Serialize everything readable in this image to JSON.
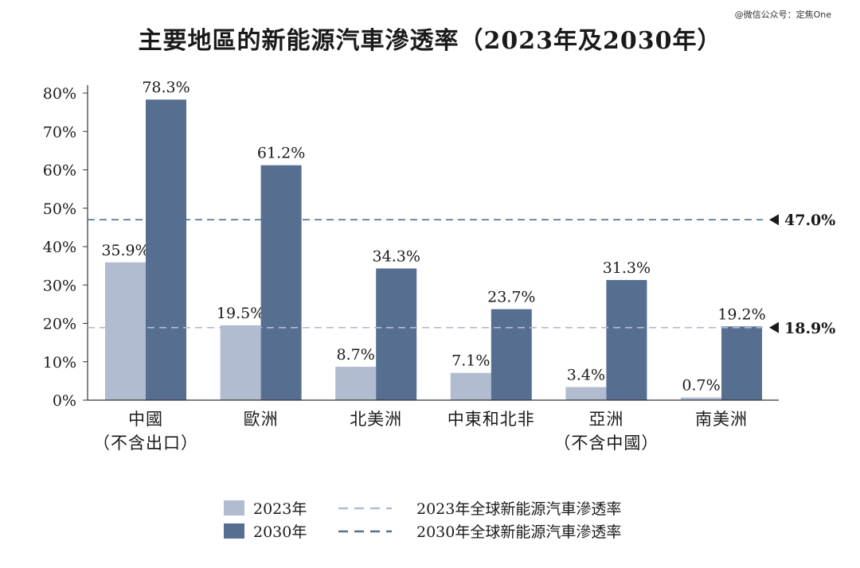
{
  "watermark": "@微信公众号：定焦One",
  "chart_data": {
    "type": "bar",
    "title": "主要地區的新能源汽車滲透率（2023年及2030年）",
    "categories": [
      [
        "中國",
        "（不含出口）"
      ],
      [
        "歐洲"
      ],
      [
        "北美洲"
      ],
      [
        "中東和北非"
      ],
      [
        "亞洲",
        "（不含中國）"
      ],
      [
        "南美洲"
      ]
    ],
    "series": [
      {
        "name": "2023年",
        "color": "#b1bcd0",
        "values": [
          35.9,
          19.5,
          8.7,
          7.1,
          3.4,
          0.7
        ],
        "labels": [
          "35.9%",
          "19.5%",
          "8.7%",
          "7.1%",
          "3.4%",
          "0.7%"
        ]
      },
      {
        "name": "2030年",
        "color": "#566f91",
        "values": [
          78.3,
          61.2,
          34.3,
          23.7,
          31.3,
          19.2
        ],
        "labels": [
          "78.3%",
          "61.2%",
          "34.3%",
          "23.7%",
          "31.3%",
          "19.2%"
        ]
      }
    ],
    "reference_lines": [
      {
        "name": "2023年全球新能源汽車滲透率",
        "value": 18.9,
        "label": "18.9%",
        "color": "#b1bcd0"
      },
      {
        "name": "2030年全球新能源汽車滲透率",
        "value": 47.0,
        "label": "47.0%",
        "color": "#566f91"
      }
    ],
    "yticks": [
      "0%",
      "10%",
      "20%",
      "30%",
      "40%",
      "50%",
      "60%",
      "70%",
      "80%"
    ],
    "ylim": [
      0,
      80
    ],
    "xlabel": "",
    "ylabel": "",
    "grid": false,
    "legend_position": "bottom"
  }
}
